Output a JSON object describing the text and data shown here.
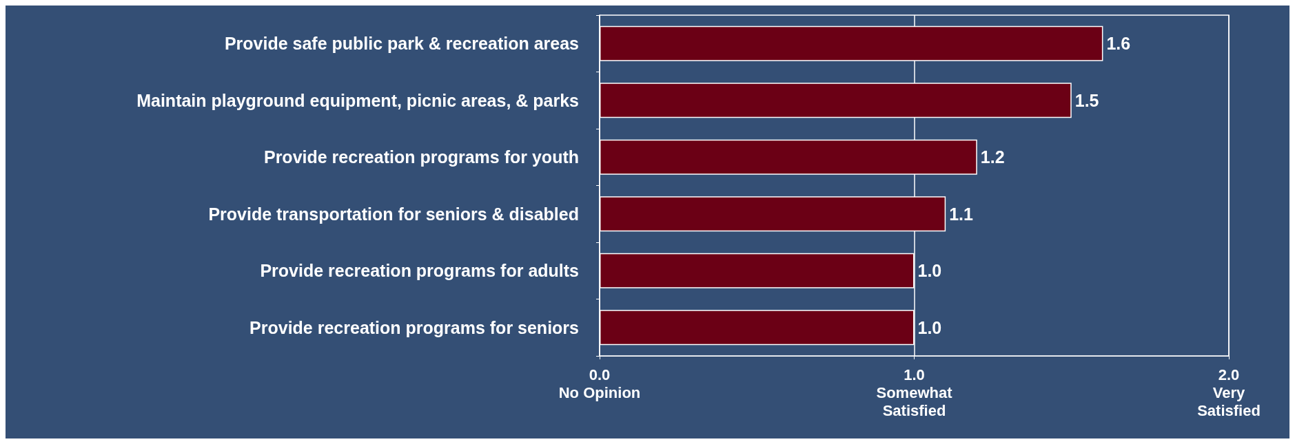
{
  "chart_data": {
    "type": "bar",
    "orientation": "horizontal",
    "categories": [
      "Provide safe public park & recreation areas",
      "Maintain playground equipment, picnic areas, & parks",
      "Provide recreation programs for youth",
      "Provide transportation for seniors & disabled",
      "Provide recreation programs for adults",
      "Provide recreation programs for seniors"
    ],
    "values": [
      1.6,
      1.5,
      1.2,
      1.1,
      1.0,
      1.0
    ],
    "value_labels": [
      "1.6",
      "1.5",
      "1.2",
      "1.1",
      "1.0",
      "1.0"
    ],
    "color": "#6b0015",
    "xlim": [
      0,
      2
    ],
    "xticks": [
      {
        "value": 0,
        "label": "0.0\nNo Opinion"
      },
      {
        "value": 1,
        "label": "1.0\nSomewhat\nSatisfied"
      },
      {
        "value": 2,
        "label": "2.0\nVery\nSatisfied"
      }
    ],
    "grid": "x"
  }
}
